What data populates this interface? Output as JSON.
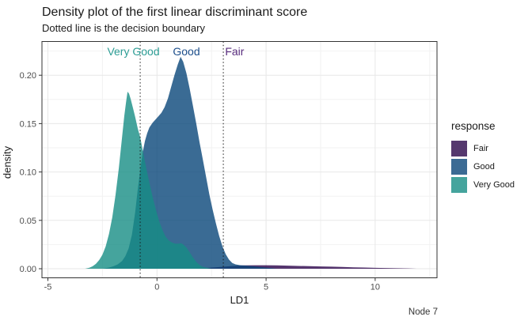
{
  "header": {
    "title": "Density plot of the first linear discriminant score",
    "subtitle": "Dotted line is the decision boundary"
  },
  "caption": "Node 7",
  "chart_data": {
    "type": "area",
    "title": "Density plot of the first linear discriminant score",
    "subtitle": "Dotted line is the decision boundary",
    "xlabel": "LD1",
    "ylabel": "density",
    "xlim": [
      -5.27,
      12.83
    ],
    "ylim": [
      -0.013,
      0.2345
    ],
    "grid": "on",
    "x_ticks": [
      {
        "value": -5,
        "label": "-5"
      },
      {
        "value": 0,
        "label": "0"
      },
      {
        "value": 5,
        "label": "5"
      },
      {
        "value": 10,
        "label": "10"
      }
    ],
    "x_minor_ticks": [
      -2.5,
      2.5,
      7.5,
      12.5
    ],
    "y_ticks": [
      {
        "value": 0,
        "label": "0.00"
      },
      {
        "value": 0.05,
        "label": "0.05"
      },
      {
        "value": 0.1,
        "label": "0.10"
      },
      {
        "value": 0.15,
        "label": "0.15"
      },
      {
        "value": 0.2,
        "label": "0.20"
      }
    ],
    "y_minor_ticks": [
      0.025,
      0.075,
      0.125,
      0.175,
      0.225
    ],
    "decision_boundaries": [
      -0.77,
      3.04
    ],
    "boundary_line_color": "#1a1a1a",
    "fill_alpha": 0.8,
    "annotations": [
      {
        "text": "Very Good",
        "x": -1.08,
        "y": 0.2246,
        "color": "#2d9d95"
      },
      {
        "text": "Good",
        "x": 1.35,
        "y": 0.2246,
        "color": "#1d4f8c"
      },
      {
        "text": "Fair",
        "x": 3.56,
        "y": 0.2246,
        "color": "#582c7e"
      }
    ],
    "series": [
      {
        "name": "Fair",
        "fill_base": "#2b024a",
        "fill_displayed": "#55386e",
        "points": [
          [
            1.8,
            0
          ],
          [
            2.3,
            0.0008
          ],
          [
            2.8,
            0.0016
          ],
          [
            3.2,
            0.0024
          ],
          [
            3.6,
            0.003
          ],
          [
            4.0,
            0.0034
          ],
          [
            4.5,
            0.0036
          ],
          [
            5.0,
            0.0036
          ],
          [
            5.5,
            0.0034
          ],
          [
            6.0,
            0.0032
          ],
          [
            6.5,
            0.0029
          ],
          [
            7.0,
            0.0027
          ],
          [
            7.5,
            0.0024
          ],
          [
            8.0,
            0.0021
          ],
          [
            8.5,
            0.0018
          ],
          [
            9.0,
            0.0015
          ],
          [
            9.5,
            0.0012
          ],
          [
            10.0,
            0.0009
          ],
          [
            10.5,
            0.0007
          ],
          [
            11.0,
            0.0005
          ],
          [
            11.5,
            0.0003
          ],
          [
            11.9,
            0
          ]
        ]
      },
      {
        "name": "Good",
        "fill_base": "#094679",
        "fill_displayed": "#3c6b94",
        "points": [
          [
            -2.5,
            0
          ],
          [
            -2.2,
            0.0012
          ],
          [
            -2.0,
            0.0025
          ],
          [
            -1.8,
            0.0045
          ],
          [
            -1.6,
            0.008
          ],
          [
            -1.45,
            0.013
          ],
          [
            -1.3,
            0.021
          ],
          [
            -1.15,
            0.035
          ],
          [
            -1.0,
            0.058
          ],
          [
            -0.88,
            0.082
          ],
          [
            -0.75,
            0.105
          ],
          [
            -0.65,
            0.121
          ],
          [
            -0.55,
            0.132
          ],
          [
            -0.45,
            0.14
          ],
          [
            -0.35,
            0.146
          ],
          [
            -0.2,
            0.151
          ],
          [
            0.0,
            0.156
          ],
          [
            0.2,
            0.161
          ],
          [
            0.35,
            0.167
          ],
          [
            0.5,
            0.176
          ],
          [
            0.65,
            0.188
          ],
          [
            0.8,
            0.2
          ],
          [
            0.95,
            0.211
          ],
          [
            1.08,
            0.219
          ],
          [
            1.2,
            0.214
          ],
          [
            1.35,
            0.202
          ],
          [
            1.5,
            0.186
          ],
          [
            1.65,
            0.168
          ],
          [
            1.8,
            0.15
          ],
          [
            1.95,
            0.131
          ],
          [
            2.1,
            0.113
          ],
          [
            2.25,
            0.095
          ],
          [
            2.4,
            0.077
          ],
          [
            2.55,
            0.061
          ],
          [
            2.7,
            0.047
          ],
          [
            2.85,
            0.034
          ],
          [
            3.0,
            0.023
          ],
          [
            3.15,
            0.015
          ],
          [
            3.3,
            0.0095
          ],
          [
            3.45,
            0.006
          ],
          [
            3.6,
            0.0045
          ],
          [
            3.8,
            0.0037
          ],
          [
            4.1,
            0.0032
          ],
          [
            4.5,
            0.0024
          ],
          [
            4.9,
            0.0014
          ],
          [
            5.3,
            0.0005
          ],
          [
            5.5,
            0
          ]
        ]
      },
      {
        "name": "Very Good",
        "fill_base": "#168d84",
        "fill_displayed": "#45a49d",
        "points": [
          [
            -3.3,
            0
          ],
          [
            -3.1,
            0.001
          ],
          [
            -2.95,
            0.0025
          ],
          [
            -2.8,
            0.005
          ],
          [
            -2.65,
            0.009
          ],
          [
            -2.5,
            0.0145
          ],
          [
            -2.35,
            0.023
          ],
          [
            -2.2,
            0.036
          ],
          [
            -2.05,
            0.053
          ],
          [
            -1.9,
            0.076
          ],
          [
            -1.75,
            0.104
          ],
          [
            -1.6,
            0.136
          ],
          [
            -1.5,
            0.158
          ],
          [
            -1.42,
            0.172
          ],
          [
            -1.35,
            0.183
          ],
          [
            -1.28,
            0.181
          ],
          [
            -1.2,
            0.175
          ],
          [
            -1.1,
            0.166
          ],
          [
            -1.0,
            0.157
          ],
          [
            -0.88,
            0.145
          ],
          [
            -0.77,
            0.136
          ],
          [
            -0.65,
            0.122
          ],
          [
            -0.5,
            0.105
          ],
          [
            -0.35,
            0.089
          ],
          [
            -0.2,
            0.074
          ],
          [
            -0.05,
            0.061
          ],
          [
            0.1,
            0.049
          ],
          [
            0.25,
            0.04
          ],
          [
            0.4,
            0.033
          ],
          [
            0.55,
            0.029
          ],
          [
            0.7,
            0.027
          ],
          [
            0.85,
            0.0258
          ],
          [
            1.0,
            0.026
          ],
          [
            1.1,
            0.0263
          ],
          [
            1.2,
            0.0252
          ],
          [
            1.35,
            0.022
          ],
          [
            1.5,
            0.017
          ],
          [
            1.65,
            0.0115
          ],
          [
            1.8,
            0.007
          ],
          [
            1.95,
            0.004
          ],
          [
            2.1,
            0.002
          ],
          [
            2.3,
            0.0008
          ],
          [
            2.5,
            0
          ]
        ]
      }
    ],
    "legend": {
      "title": "response",
      "items": [
        {
          "label": "Fair",
          "color": "#55386e"
        },
        {
          "label": "Good",
          "color": "#3c6b94"
        },
        {
          "label": "Very Good",
          "color": "#45a49d"
        }
      ],
      "position": "right"
    },
    "theme": {
      "panel_border": "#333333",
      "grid_major": "#e7e7e7",
      "grid_minor": "#f2f2f2",
      "tick_color": "#333333",
      "tick_label_color": "#4d4d4d",
      "background": "#ffffff"
    }
  }
}
